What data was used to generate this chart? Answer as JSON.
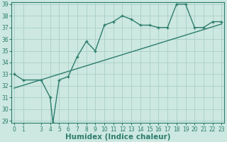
{
  "x_data": [
    0,
    1,
    3,
    4,
    4.3,
    5,
    6,
    7,
    8,
    9,
    10,
    11,
    12,
    13,
    14,
    15,
    16,
    17,
    18,
    19,
    20,
    21,
    22,
    23
  ],
  "y_curve": [
    33.0,
    32.5,
    32.5,
    31.0,
    28.8,
    32.5,
    32.8,
    34.5,
    35.8,
    35.0,
    37.2,
    37.5,
    38.0,
    37.7,
    37.2,
    37.2,
    37.0,
    37.0,
    39.0,
    39.0,
    37.0,
    37.0,
    37.5,
    37.5
  ],
  "trend_x": [
    0,
    23
  ],
  "trend_y": [
    31.8,
    37.3
  ],
  "line_color": "#2e7d6e",
  "bg_color": "#cce8e0",
  "grid_color": "#aacfc7",
  "xlabel": "Humidex (Indice chaleur)",
  "ylim": [
    29,
    39
  ],
  "xlim": [
    -0.3,
    23.3
  ],
  "yticks": [
    29,
    30,
    31,
    32,
    33,
    34,
    35,
    36,
    37,
    38,
    39
  ],
  "xticks": [
    0,
    1,
    3,
    4,
    5,
    6,
    7,
    8,
    9,
    10,
    11,
    12,
    13,
    14,
    15,
    16,
    17,
    18,
    19,
    20,
    21,
    22,
    23
  ],
  "tick_fontsize": 5.5,
  "xlabel_fontsize": 7.5
}
